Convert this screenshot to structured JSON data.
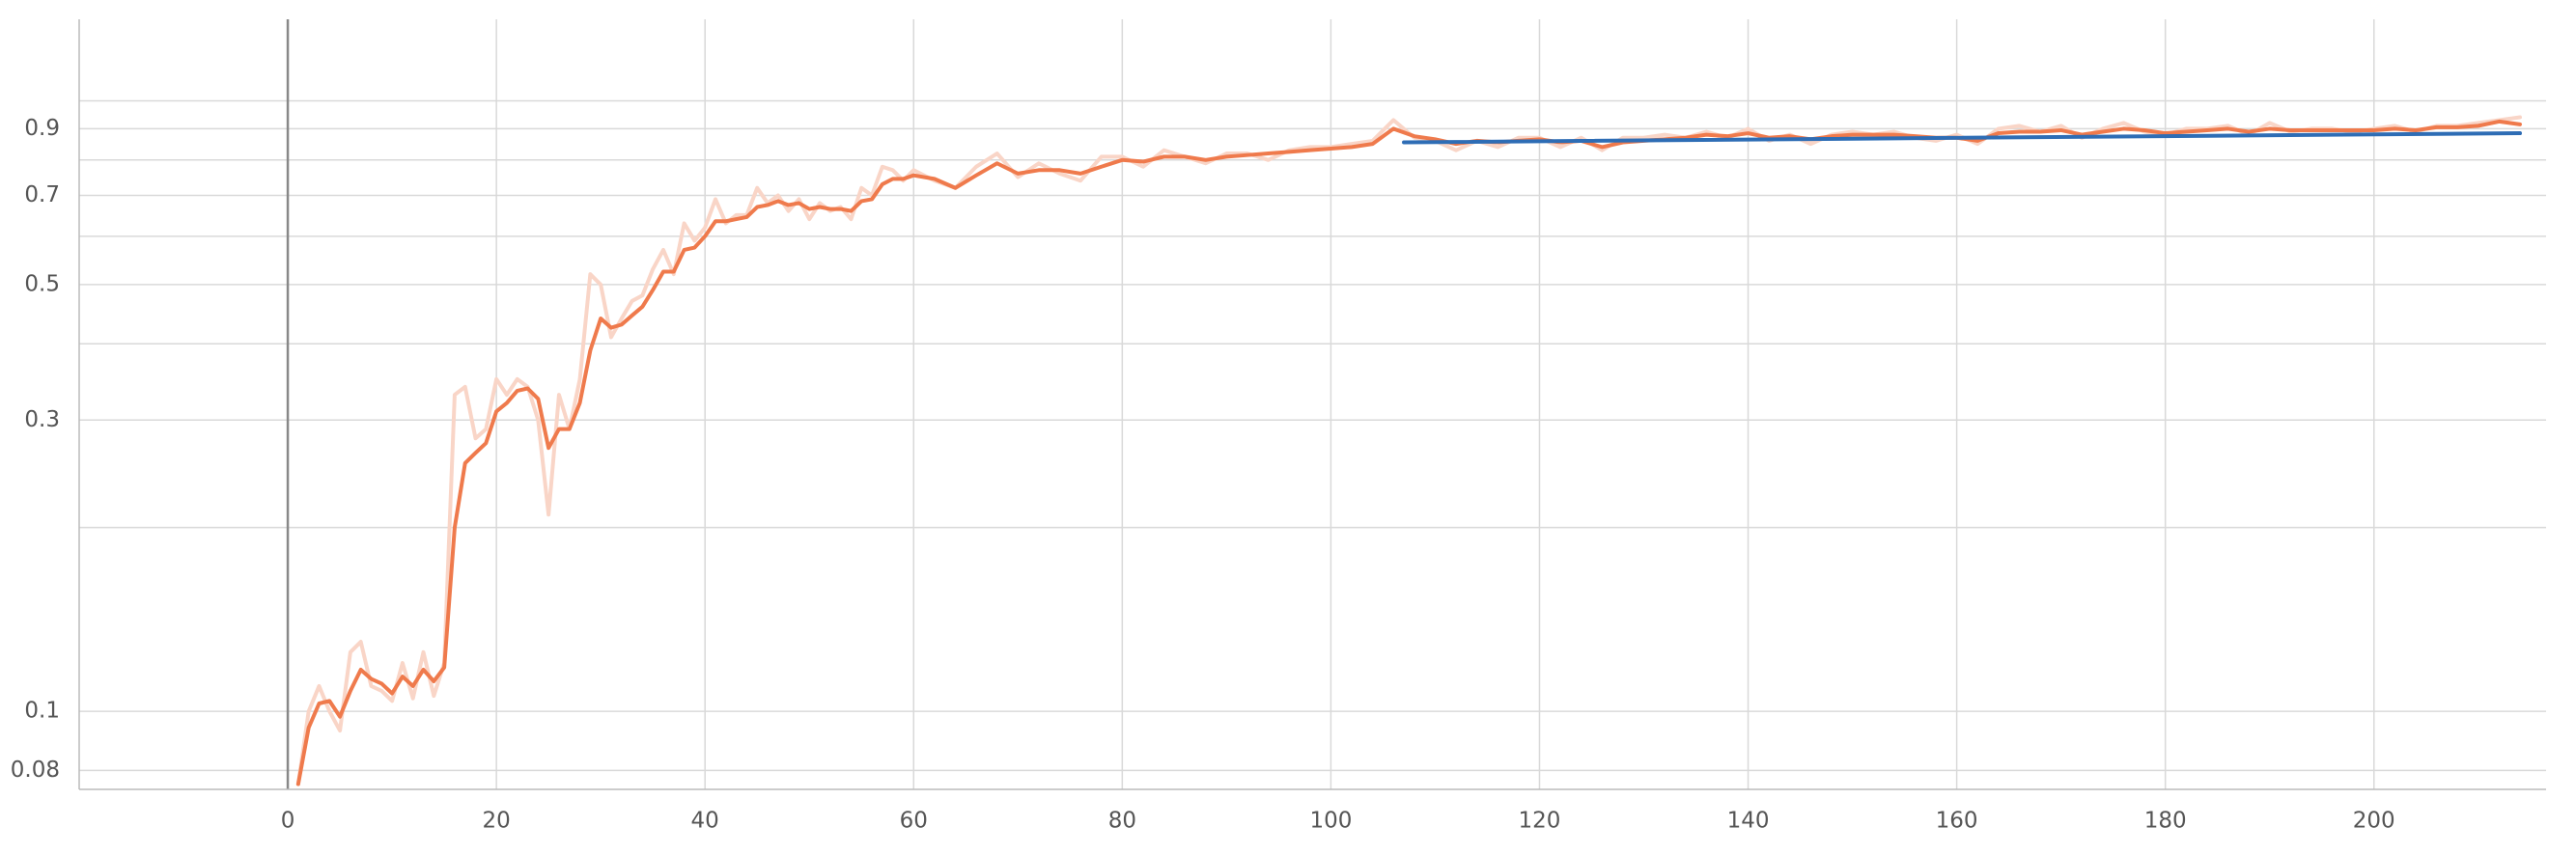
{
  "chart_data": {
    "type": "line",
    "log_y": true,
    "grid": true,
    "xlim": [
      -20,
      216.5
    ],
    "ylim": [
      0.0745,
      1.36
    ],
    "xticks": [
      0,
      20,
      40,
      60,
      80,
      100,
      120,
      140,
      160,
      180,
      200
    ],
    "yticks": [
      0.08,
      0.1,
      0.3,
      0.5,
      0.7,
      0.9
    ],
    "y_minor_grid": [
      0.2,
      0.4,
      0.6,
      0.8,
      1.0
    ],
    "x": [
      1,
      2,
      3,
      4,
      5,
      6,
      7,
      8,
      9,
      10,
      11,
      12,
      13,
      14,
      15,
      16,
      17,
      18,
      19,
      20,
      21,
      22,
      23,
      24,
      25,
      26,
      27,
      28,
      29,
      30,
      31,
      32,
      33,
      34,
      35,
      36,
      37,
      38,
      39,
      40,
      41,
      42,
      43,
      44,
      45,
      46,
      47,
      48,
      49,
      50,
      51,
      52,
      53,
      54,
      55,
      56,
      57,
      58,
      59,
      60,
      62,
      64,
      66,
      68,
      70,
      72,
      74,
      76,
      78,
      80,
      82,
      84,
      86,
      88,
      90,
      92,
      94,
      96,
      98,
      100,
      102,
      104,
      106,
      108,
      110,
      112,
      114,
      116,
      118,
      120,
      122,
      124,
      126,
      128,
      130,
      132,
      134,
      136,
      138,
      140,
      142,
      144,
      146,
      148,
      150,
      152,
      154,
      156,
      158,
      160,
      162,
      164,
      166,
      168,
      170,
      172,
      174,
      176,
      178,
      180,
      182,
      184,
      186,
      188,
      190,
      192,
      194,
      196,
      198,
      200,
      202,
      204,
      206,
      208,
      210,
      212,
      214
    ],
    "series": [
      {
        "color": "#f9d5c7",
        "values": [
          0.076,
          0.1,
          0.11,
          0.1,
          0.093,
          0.125,
          0.13,
          0.11,
          0.108,
          0.104,
          0.12,
          0.105,
          0.125,
          0.106,
          0.12,
          0.33,
          0.34,
          0.28,
          0.29,
          0.35,
          0.33,
          0.35,
          0.34,
          0.3,
          0.21,
          0.33,
          0.29,
          0.35,
          0.52,
          0.5,
          0.41,
          0.44,
          0.47,
          0.48,
          0.53,
          0.57,
          0.52,
          0.63,
          0.59,
          0.62,
          0.69,
          0.63,
          0.65,
          0.65,
          0.72,
          0.68,
          0.7,
          0.66,
          0.69,
          0.64,
          0.68,
          0.66,
          0.67,
          0.64,
          0.72,
          0.7,
          0.78,
          0.77,
          0.74,
          0.77,
          0.74,
          0.72,
          0.78,
          0.82,
          0.75,
          0.79,
          0.76,
          0.74,
          0.81,
          0.81,
          0.78,
          0.83,
          0.81,
          0.79,
          0.82,
          0.82,
          0.8,
          0.83,
          0.84,
          0.84,
          0.85,
          0.86,
          0.93,
          0.87,
          0.86,
          0.83,
          0.86,
          0.84,
          0.87,
          0.87,
          0.84,
          0.87,
          0.83,
          0.87,
          0.87,
          0.88,
          0.87,
          0.89,
          0.87,
          0.9,
          0.86,
          0.88,
          0.85,
          0.88,
          0.89,
          0.88,
          0.89,
          0.87,
          0.86,
          0.88,
          0.85,
          0.9,
          0.91,
          0.89,
          0.91,
          0.87,
          0.9,
          0.92,
          0.89,
          0.88,
          0.9,
          0.9,
          0.91,
          0.88,
          0.92,
          0.89,
          0.9,
          0.9,
          0.89,
          0.9,
          0.91,
          0.89,
          0.91,
          0.91,
          0.92,
          0.93,
          0.94
        ]
      },
      {
        "color": "#ef7a4c",
        "values": [
          0.076,
          0.094,
          0.103,
          0.104,
          0.098,
          0.108,
          0.117,
          0.113,
          0.111,
          0.107,
          0.114,
          0.11,
          0.117,
          0.112,
          0.118,
          0.2,
          0.255,
          0.265,
          0.275,
          0.31,
          0.32,
          0.335,
          0.338,
          0.325,
          0.27,
          0.29,
          0.29,
          0.32,
          0.39,
          0.44,
          0.425,
          0.43,
          0.445,
          0.46,
          0.49,
          0.525,
          0.525,
          0.57,
          0.575,
          0.6,
          0.635,
          0.635,
          0.64,
          0.645,
          0.67,
          0.675,
          0.685,
          0.675,
          0.68,
          0.665,
          0.67,
          0.665,
          0.665,
          0.66,
          0.685,
          0.69,
          0.73,
          0.745,
          0.745,
          0.755,
          0.745,
          0.72,
          0.755,
          0.79,
          0.76,
          0.77,
          0.77,
          0.76,
          0.78,
          0.8,
          0.795,
          0.81,
          0.81,
          0.8,
          0.81,
          0.815,
          0.82,
          0.825,
          0.83,
          0.835,
          0.84,
          0.85,
          0.9,
          0.875,
          0.865,
          0.85,
          0.86,
          0.855,
          0.86,
          0.865,
          0.855,
          0.86,
          0.84,
          0.855,
          0.86,
          0.865,
          0.87,
          0.88,
          0.875,
          0.885,
          0.87,
          0.875,
          0.865,
          0.875,
          0.88,
          0.88,
          0.88,
          0.875,
          0.87,
          0.87,
          0.86,
          0.885,
          0.89,
          0.89,
          0.895,
          0.88,
          0.89,
          0.9,
          0.895,
          0.885,
          0.89,
          0.895,
          0.9,
          0.89,
          0.9,
          0.895,
          0.895,
          0.895,
          0.895,
          0.895,
          0.9,
          0.895,
          0.905,
          0.905,
          0.91,
          0.925,
          0.915
        ]
      },
      {
        "color": "#2e6db5",
        "x": [
          107,
          214
        ],
        "values": [
          0.855,
          0.885
        ]
      }
    ]
  }
}
